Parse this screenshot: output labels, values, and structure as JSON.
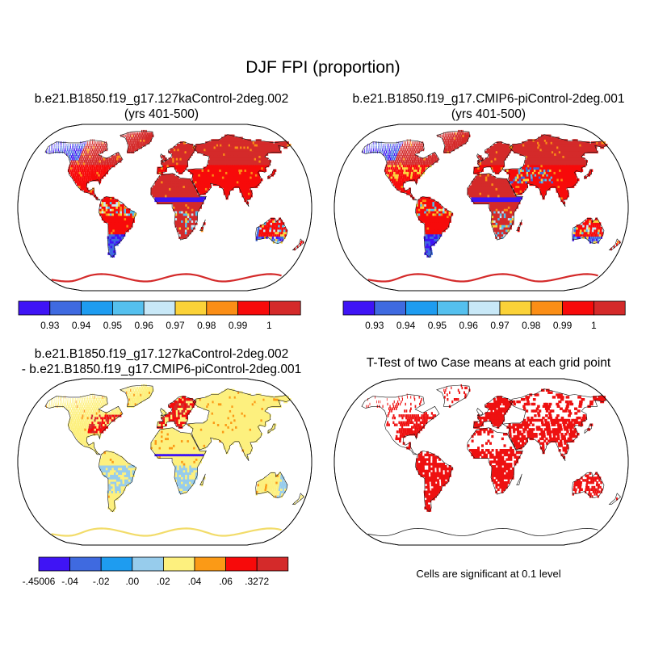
{
  "title": "DJF FPI (proportion)",
  "panels": [
    {
      "line1": "b.e21.B1850.f19_g17.127kaControl-2deg.002",
      "line2": "(yrs 401-500)"
    },
    {
      "line1": "b.e21.B1850.f19_g17.CMIP6-piControl-2deg.001",
      "line2": "(yrs 401-500)"
    },
    {
      "line1": "b.e21.B1850.f19_g17.127kaControl-2deg.002",
      "line2": "- b.e21.B1850.f19_g17.CMIP6-piControl-2deg.001"
    },
    {
      "line1": "T-Test of two Case means at each grid point",
      "line2": ""
    }
  ],
  "significance_note": "Cells are significant at 0.1 level",
  "colorbars": {
    "abs": {
      "colors": [
        "#3f14f5",
        "#3f6ae0",
        "#1e9cf0",
        "#55c0ee",
        "#c8e8f7",
        "#fbd238",
        "#fb8e16",
        "#f70a0a",
        "#d42a2a"
      ],
      "labels": [
        "0.93",
        "0.94",
        "0.95",
        "0.96",
        "0.97",
        "0.98",
        "0.99",
        "1"
      ]
    },
    "diff": {
      "colors": [
        "#3f14f5",
        "#3f6ae0",
        "#1e9cf0",
        "#97ccec",
        "#fdf07e",
        "#fb9a16",
        "#f70a0a",
        "#d42a2a"
      ],
      "labels": [
        "-.45006",
        "-.04",
        "-.02",
        ".00",
        ".02",
        ".04",
        ".06",
        ".3272"
      ]
    }
  }
}
